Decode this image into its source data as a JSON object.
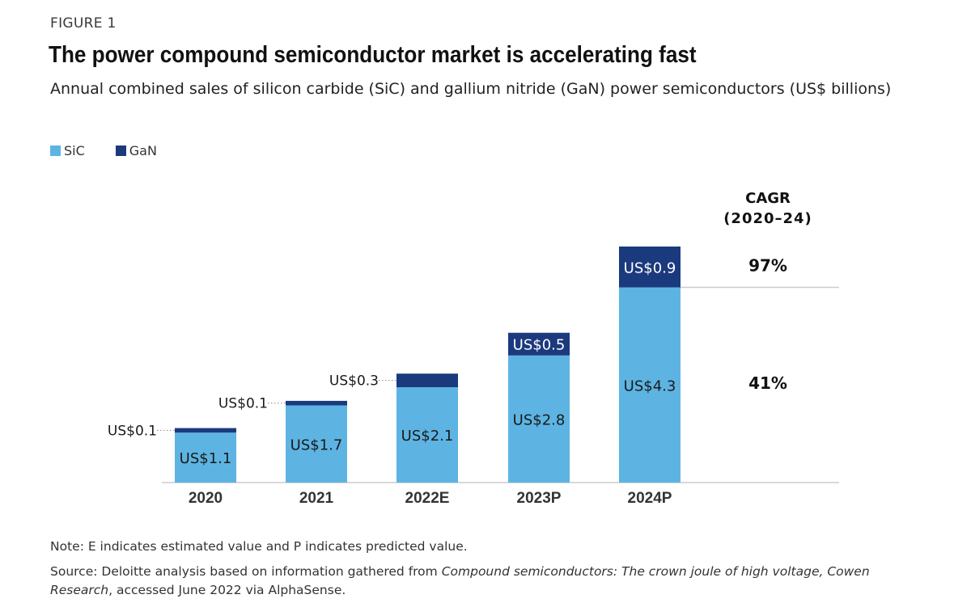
{
  "figure_label": "FIGURE 1",
  "note": "Note: E indicates estimated value and P indicates predicted value.",
  "source": {
    "prefix": "Source: Deloitte analysis based on information gathered from ",
    "italic": "Compound semiconductors: The crown joule of high voltage, Cowen Research",
    "suffix": ", accessed June 2022 via AlphaSense."
  },
  "colors": {
    "sic": "#5db4e3",
    "gan": "#1b3a7e",
    "axis": "#cccccc"
  },
  "chart_data": {
    "type": "bar",
    "stacked": true,
    "title": "The power compound semiconductor market is accelerating fast",
    "subtitle": "Annual combined sales of silicon carbide (SiC) and gallium nitride (GaN) power semiconductors (US$ billions)",
    "categories": [
      "2020",
      "2021",
      "2022E",
      "2023P",
      "2024P"
    ],
    "series": [
      {
        "name": "SiC",
        "values": [
          1.1,
          1.7,
          2.1,
          2.8,
          4.3
        ],
        "labels": [
          "US$1.1",
          "US$1.7",
          "US$2.1",
          "US$2.8",
          "US$4.3"
        ]
      },
      {
        "name": "GaN",
        "values": [
          0.1,
          0.1,
          0.3,
          0.5,
          0.9
        ],
        "labels": [
          "US$0.1",
          "US$0.1",
          "US$0.3",
          "US$0.5",
          "US$0.9"
        ]
      }
    ],
    "ylim": [
      0,
      5.2
    ],
    "legend": "top-left",
    "grid": false,
    "cagr": {
      "title_line1": "CAGR",
      "title_line2": "(2020–24)",
      "values": [
        {
          "series": "GaN",
          "label": "97%"
        },
        {
          "series": "SiC",
          "label": "41%"
        }
      ]
    }
  }
}
